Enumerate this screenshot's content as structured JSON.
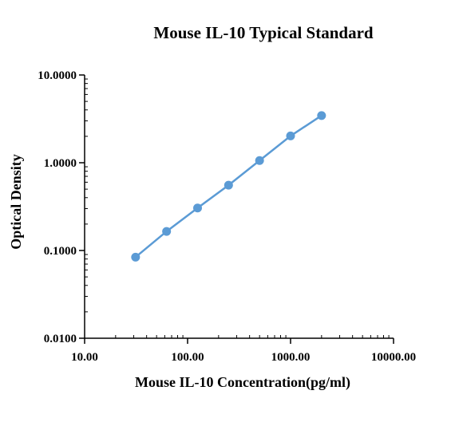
{
  "chart_data": {
    "type": "line",
    "title": "Mouse IL-10 Typical Standard",
    "xlabel": "Mouse IL-10  Concentration(pg/ml)",
    "ylabel": "Optical Density",
    "xscale": "log",
    "yscale": "log",
    "xlim": [
      10,
      10000
    ],
    "ylim": [
      0.01,
      10
    ],
    "xticks": [
      10,
      100,
      1000,
      10000
    ],
    "xtick_labels": [
      "10.00",
      "100.00",
      "1000.00",
      "10000.00"
    ],
    "yticks": [
      0.01,
      0.1,
      1,
      10
    ],
    "ytick_labels": [
      "0.0100",
      "0.1000",
      "1.0000",
      "10.0000"
    ],
    "grid": false,
    "legend": "none",
    "series": [
      {
        "color": "#5b9bd5",
        "x": [
          31.25,
          62.5,
          125,
          250,
          500,
          1000,
          2000
        ],
        "y": [
          0.084,
          0.165,
          0.305,
          0.555,
          1.06,
          2.02,
          3.45
        ]
      }
    ]
  }
}
